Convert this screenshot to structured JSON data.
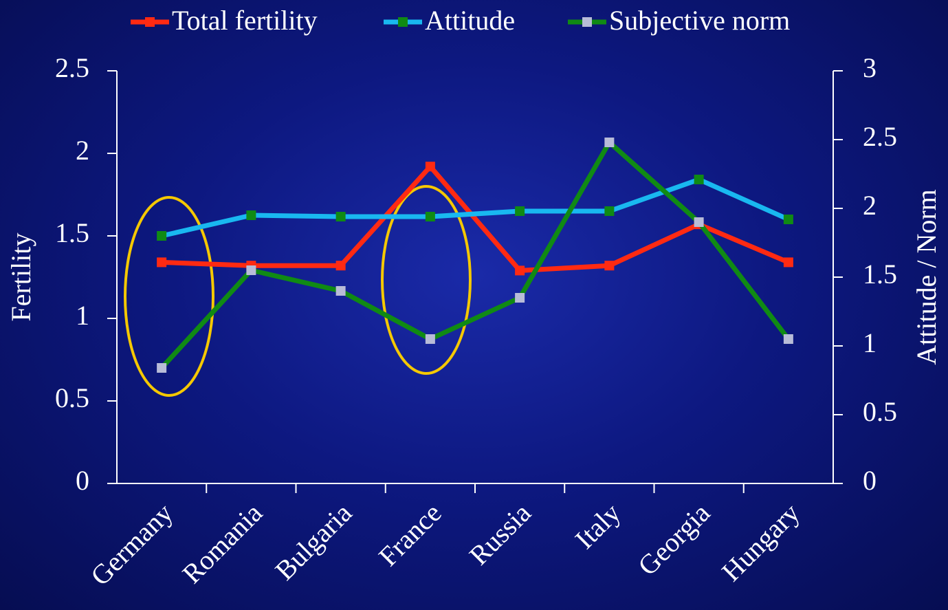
{
  "chart_data": {
    "type": "line",
    "categories": [
      "Germany",
      "Romania",
      "Bulgaria",
      "France",
      "Russia",
      "Italy",
      "Georgia",
      "Hungary"
    ],
    "series": [
      {
        "name": "Total fertility",
        "color": "#ff2a12",
        "marker_color": "#ff2a12",
        "values": [
          1.34,
          1.32,
          1.32,
          1.92,
          1.29,
          1.32,
          1.57,
          1.34
        ]
      },
      {
        "name": "Attitude",
        "color": "#19b8f0",
        "marker_color": "#108a14",
        "axis": "y2",
        "values": [
          1.8,
          1.95,
          1.94,
          1.94,
          1.98,
          1.98,
          2.21,
          1.92
        ]
      },
      {
        "name": "Subjective norm",
        "color": "#108a14",
        "marker_color": "#b8bcd8",
        "axis": "y2",
        "values": [
          0.84,
          1.55,
          1.4,
          1.05,
          1.35,
          2.48,
          1.9,
          1.05
        ]
      }
    ],
    "ylabel": "Fertility",
    "y2label": "Attitude / Norm",
    "ylim": [
      0,
      2.5
    ],
    "yticks": [
      0,
      0.5,
      1,
      1.5,
      2,
      2.5
    ],
    "y2lim": [
      0,
      3
    ],
    "y2ticks": [
      0,
      0.5,
      1,
      1.5,
      2,
      2.5,
      3
    ],
    "legend": "top",
    "grid": false
  }
}
